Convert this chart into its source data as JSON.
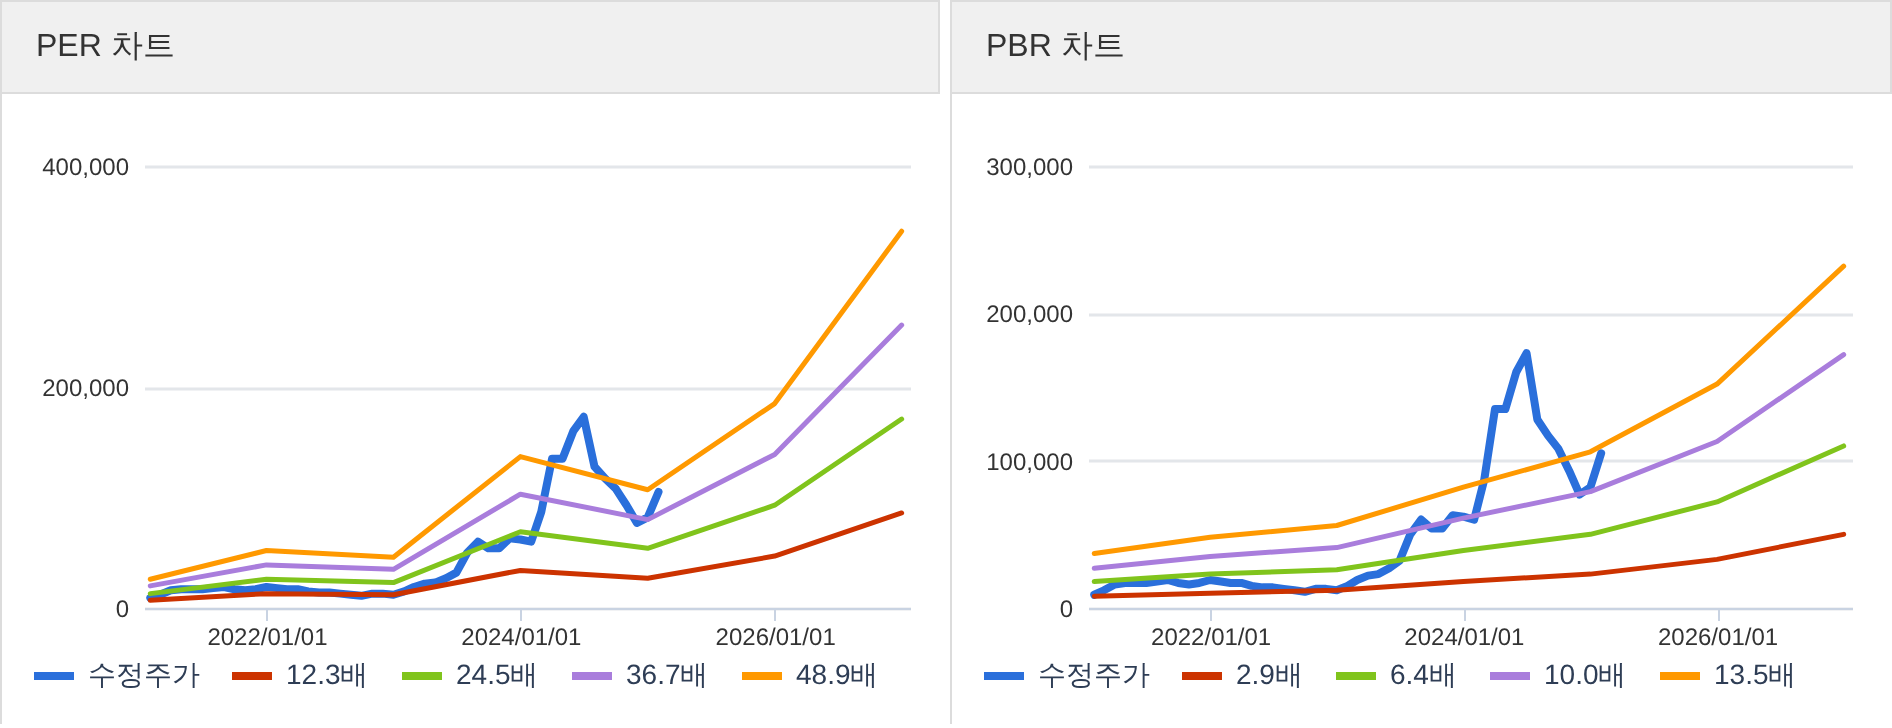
{
  "chart_data": [
    {
      "type": "line",
      "title": "PER 차트",
      "legend": "bottom",
      "grid": "y",
      "line_style": "solid",
      "xlim": [
        "2021-01-14",
        "2027-01-25"
      ],
      "xticks": [
        {
          "value": "2022-01-01",
          "label": "2022/01/01"
        },
        {
          "value": "2024-01-01",
          "label": "2024/01/01"
        },
        {
          "value": "2026-01-01",
          "label": "2026/01/01"
        }
      ],
      "ylim": [
        0,
        400000
      ],
      "yticks": [
        0,
        {
          "value": 200000,
          "label": "200,000"
        },
        {
          "value": 400000,
          "label": "400,000"
        }
      ],
      "series": [
        {
          "name": "수정주가",
          "color": "#2a6fdb",
          "x": [
            "2021-02",
            "2021-03",
            "2021-04",
            "2021-05",
            "2021-06",
            "2021-07",
            "2021-08",
            "2021-09",
            "2021-10",
            "2021-11",
            "2021-12",
            "2022-01",
            "2022-02",
            "2022-03",
            "2022-04",
            "2022-05",
            "2022-06",
            "2022-07",
            "2022-08",
            "2022-09",
            "2022-10",
            "2022-11",
            "2022-12",
            "2023-01",
            "2023-02",
            "2023-03",
            "2023-04",
            "2023-05",
            "2023-06",
            "2023-07",
            "2023-08",
            "2023-09",
            "2023-10",
            "2023-11",
            "2023-12",
            "2024-01",
            "2024-02",
            "2024-03",
            "2024-04",
            "2024-05",
            "2024-06",
            "2024-07",
            "2024-08",
            "2024-09",
            "2024-10",
            "2024-11",
            "2024-12",
            "2025-01",
            "2025-02"
          ],
          "values": [
            9000,
            12000,
            16000,
            17000,
            17000,
            17000,
            18000,
            19000,
            17000,
            16000,
            17000,
            19000,
            18000,
            17000,
            17000,
            15000,
            14000,
            14000,
            13000,
            12000,
            11000,
            13000,
            13000,
            12000,
            15000,
            19000,
            22000,
            23000,
            27000,
            32000,
            50000,
            60000,
            54000,
            54000,
            63000,
            62000,
            60000,
            87000,
            135000,
            135000,
            160000,
            173000,
            128000,
            117000,
            108000,
            93000,
            77000,
            82000,
            105000
          ]
        },
        {
          "name": "12.3배",
          "color": "#cc3300",
          "x": [
            "2021-02",
            "2022-01",
            "2023-01",
            "2024-01",
            "2025-01",
            "2026-01",
            "2027-01"
          ],
          "values": [
            7000,
            13000,
            12000,
            34000,
            27000,
            47000,
            86000
          ]
        },
        {
          "name": "24.5배",
          "color": "#80c41c",
          "x": [
            "2021-02",
            "2022-01",
            "2023-01",
            "2024-01",
            "2025-01",
            "2026-01",
            "2027-01"
          ],
          "values": [
            13000,
            26000,
            23000,
            69000,
            54000,
            93000,
            171000
          ]
        },
        {
          "name": "36.7배",
          "color": "#a97ddc",
          "x": [
            "2021-02",
            "2022-01",
            "2023-01",
            "2024-01",
            "2025-01",
            "2026-01",
            "2027-01"
          ],
          "values": [
            20000,
            39000,
            35000,
            103000,
            80000,
            139000,
            256000
          ]
        },
        {
          "name": "48.9배",
          "color": "#ff9900",
          "x": [
            "2021-02",
            "2022-01",
            "2023-01",
            "2024-01",
            "2025-01",
            "2026-01",
            "2027-01"
          ],
          "values": [
            26000,
            52000,
            46000,
            137000,
            107000,
            185000,
            341000
          ]
        }
      ]
    },
    {
      "type": "line",
      "title": "PBR 차트",
      "legend": "bottom",
      "grid": "y",
      "line_style": "solid",
      "xlim": [
        "2021-01-14",
        "2027-01-25"
      ],
      "xticks": [
        {
          "value": "2022-01-01",
          "label": "2022/01/01"
        },
        {
          "value": "2024-01-01",
          "label": "2024/01/01"
        },
        {
          "value": "2026-01-01",
          "label": "2026/01/01"
        }
      ],
      "ylim": [
        0,
        300000
      ],
      "yticks": [
        0,
        {
          "value": 100000,
          "label": "100,000"
        },
        {
          "value": 200000,
          "label": "200,000"
        },
        {
          "value": 300000,
          "label": "300,000"
        }
      ],
      "series": [
        {
          "name": "수정주가",
          "color": "#2a6fdb",
          "x": [
            "2021-02",
            "2021-03",
            "2021-04",
            "2021-05",
            "2021-06",
            "2021-07",
            "2021-08",
            "2021-09",
            "2021-10",
            "2021-11",
            "2021-12",
            "2022-01",
            "2022-02",
            "2022-03",
            "2022-04",
            "2022-05",
            "2022-06",
            "2022-07",
            "2022-08",
            "2022-09",
            "2022-10",
            "2022-11",
            "2022-12",
            "2023-01",
            "2023-02",
            "2023-03",
            "2023-04",
            "2023-05",
            "2023-06",
            "2023-07",
            "2023-08",
            "2023-09",
            "2023-10",
            "2023-11",
            "2023-12",
            "2024-01",
            "2024-02",
            "2024-03",
            "2024-04",
            "2024-05",
            "2024-06",
            "2024-07",
            "2024-08",
            "2024-09",
            "2024-10",
            "2024-11",
            "2024-12",
            "2025-01",
            "2025-02"
          ],
          "values": [
            9000,
            12000,
            16000,
            17000,
            17000,
            17000,
            18000,
            19000,
            17000,
            16000,
            17000,
            19000,
            18000,
            17000,
            17000,
            15000,
            14000,
            14000,
            13000,
            12000,
            11000,
            13000,
            13000,
            12000,
            15000,
            19000,
            22000,
            23000,
            27000,
            32000,
            50000,
            60000,
            54000,
            54000,
            63000,
            62000,
            60000,
            87000,
            135000,
            135000,
            160000,
            173000,
            128000,
            117000,
            108000,
            93000,
            77000,
            82000,
            105000
          ]
        },
        {
          "name": "2.9배",
          "color": "#cc3300",
          "x": [
            "2021-02",
            "2022-01",
            "2023-01",
            "2024-01",
            "2025-01",
            "2026-01",
            "2027-01"
          ],
          "values": [
            8000,
            10000,
            12000,
            18000,
            23000,
            33000,
            50000
          ]
        },
        {
          "name": "6.4배",
          "color": "#80c41c",
          "x": [
            "2021-02",
            "2022-01",
            "2023-01",
            "2024-01",
            "2025-01",
            "2026-01",
            "2027-01"
          ],
          "values": [
            18000,
            23000,
            26000,
            39000,
            50000,
            72000,
            110000
          ]
        },
        {
          "name": "10.0배",
          "color": "#a97ddc",
          "x": [
            "2021-02",
            "2022-01",
            "2023-01",
            "2024-01",
            "2025-01",
            "2026-01",
            "2027-01"
          ],
          "values": [
            27000,
            35000,
            41000,
            61000,
            79000,
            113000,
            172000
          ]
        },
        {
          "name": "13.5배",
          "color": "#ff9900",
          "x": [
            "2021-02",
            "2022-01",
            "2023-01",
            "2024-01",
            "2025-01",
            "2026-01",
            "2027-01"
          ],
          "values": [
            37000,
            48000,
            56000,
            82000,
            106000,
            152000,
            232000
          ]
        }
      ]
    }
  ]
}
